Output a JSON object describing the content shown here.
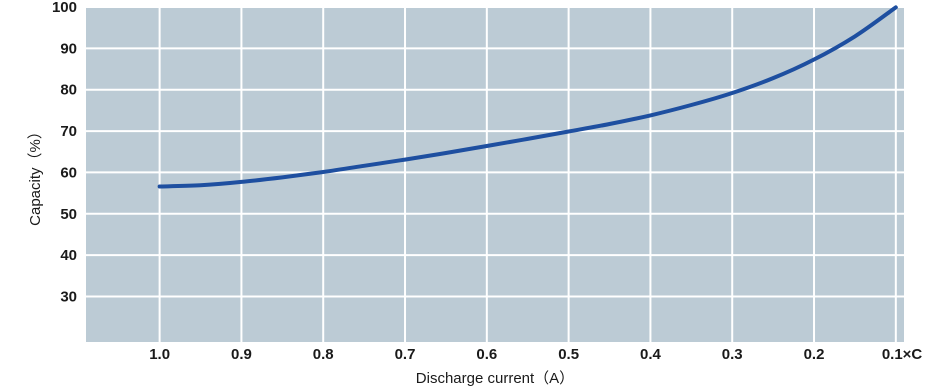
{
  "chart_data": {
    "type": "line",
    "title": "",
    "xlabel": "Discharge current（A）",
    "ylabel": "Capacity（%）",
    "x_reversed": true,
    "xlim": [
      1.09,
      0.09
    ],
    "ylim": [
      19,
      100
    ],
    "grid": true,
    "x_ticks": [
      1.0,
      0.9,
      0.8,
      0.7,
      0.6,
      0.5,
      0.4,
      0.3,
      0.2,
      0.1
    ],
    "x_tick_labels": [
      "1.0",
      "0.9",
      "0.8",
      "0.7",
      "0.6",
      "0.5",
      "0.4",
      "0.3",
      "0.2",
      "0.1×C"
    ],
    "y_ticks": [
      30,
      40,
      50,
      60,
      70,
      80,
      90,
      100
    ],
    "y_tick_labels": [
      "30",
      "40",
      "50",
      "60",
      "70",
      "80",
      "90",
      "100"
    ],
    "series": [
      {
        "x": [
          1.0,
          0.95,
          0.9,
          0.85,
          0.8,
          0.75,
          0.7,
          0.65,
          0.6,
          0.55,
          0.5,
          0.45,
          0.4,
          0.35,
          0.3,
          0.25,
          0.2,
          0.15,
          0.1
        ],
        "values": [
          56.6,
          56.9,
          57.7,
          58.8,
          60.1,
          61.6,
          63.1,
          64.7,
          66.4,
          68.1,
          69.9,
          71.7,
          73.8,
          76.3,
          79.2,
          82.8,
          87.3,
          92.9,
          99.9
        ]
      }
    ],
    "colors": {
      "plot_background": "#bccbd5",
      "gridline": "#ffffff",
      "line": "#1e4fa0"
    }
  }
}
